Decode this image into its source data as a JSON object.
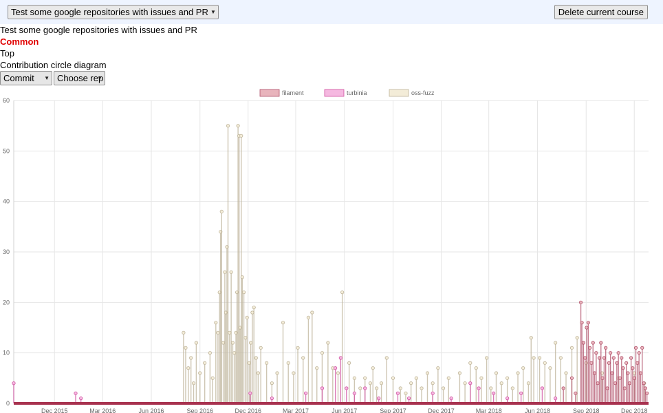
{
  "header": {
    "course_select": "Test some google repositories with issues and PR",
    "delete_button": "Delete current course"
  },
  "course_title": "Test some google repositories with issues and PR",
  "tabs": {
    "common": "Common",
    "top": "Top",
    "circle": "Contribution circle diagram"
  },
  "controls": {
    "metric": "Commit",
    "repo": "Choose rep"
  },
  "chart_data": {
    "type": "line",
    "ylim": [
      0,
      60
    ],
    "yticks": [
      0,
      10,
      20,
      30,
      40,
      50,
      60
    ],
    "xlim": [
      "2015-09-15",
      "2018-12-28"
    ],
    "xticks": [
      "Dec 2015",
      "Mar 2016",
      "Jun 2016",
      "Sep 2016",
      "Dec 2016",
      "Mar 2017",
      "Jun 2017",
      "Sep 2017",
      "Dec 2017",
      "Mar 2018",
      "Jun 2018",
      "Sep 2018",
      "Dec 2018"
    ],
    "xtick_dates": [
      "2015-12-01",
      "2016-03-01",
      "2016-06-01",
      "2016-09-01",
      "2016-12-01",
      "2017-03-01",
      "2017-06-01",
      "2017-09-01",
      "2017-12-01",
      "2018-03-01",
      "2018-06-01",
      "2018-09-01",
      "2018-12-01"
    ],
    "grid": true,
    "legend_position": "top",
    "series": [
      {
        "name": "filament",
        "color": "#b0506a",
        "fill": "#e8b4bc",
        "points": [
          [
            "2018-08-22",
            20
          ],
          [
            "2018-08-24",
            16
          ],
          [
            "2018-08-27",
            12
          ],
          [
            "2018-08-30",
            9
          ],
          [
            "2018-09-02",
            15
          ],
          [
            "2018-09-05",
            16
          ],
          [
            "2018-09-08",
            11
          ],
          [
            "2018-09-11",
            8
          ],
          [
            "2018-09-14",
            12
          ],
          [
            "2018-09-17",
            6
          ],
          [
            "2018-09-20",
            10
          ],
          [
            "2018-09-23",
            4
          ],
          [
            "2018-09-26",
            9
          ],
          [
            "2018-09-29",
            12
          ],
          [
            "2018-10-02",
            5
          ],
          [
            "2018-10-05",
            9
          ],
          [
            "2018-10-08",
            11
          ],
          [
            "2018-10-11",
            3
          ],
          [
            "2018-10-14",
            8
          ],
          [
            "2018-10-17",
            10
          ],
          [
            "2018-10-20",
            6
          ],
          [
            "2018-10-23",
            9
          ],
          [
            "2018-10-26",
            4
          ],
          [
            "2018-10-29",
            8
          ],
          [
            "2018-11-01",
            10
          ],
          [
            "2018-11-04",
            5
          ],
          [
            "2018-11-07",
            9
          ],
          [
            "2018-11-10",
            7
          ],
          [
            "2018-11-13",
            3
          ],
          [
            "2018-11-16",
            8
          ],
          [
            "2018-11-19",
            6
          ],
          [
            "2018-11-22",
            4
          ],
          [
            "2018-11-25",
            9
          ],
          [
            "2018-11-28",
            7
          ],
          [
            "2018-12-01",
            5
          ],
          [
            "2018-12-04",
            11
          ],
          [
            "2018-12-07",
            8
          ],
          [
            "2018-12-10",
            10
          ],
          [
            "2018-12-13",
            6
          ],
          [
            "2018-12-16",
            11
          ],
          [
            "2018-12-19",
            4
          ],
          [
            "2018-12-22",
            3
          ],
          [
            "2018-12-25",
            2
          ],
          [
            "2018-07-20",
            3
          ],
          [
            "2018-08-05",
            5
          ],
          [
            "2018-08-12",
            2
          ]
        ]
      },
      {
        "name": "turbinia",
        "color": "#d050a0",
        "fill": "#f5b8e0",
        "points": [
          [
            "2015-09-15",
            4
          ],
          [
            "2016-01-10",
            2
          ],
          [
            "2016-01-20",
            1
          ],
          [
            "2016-12-05",
            2
          ],
          [
            "2017-01-15",
            1
          ],
          [
            "2017-03-20",
            2
          ],
          [
            "2017-04-20",
            3
          ],
          [
            "2017-05-15",
            7
          ],
          [
            "2017-05-25",
            9
          ],
          [
            "2017-06-05",
            3
          ],
          [
            "2017-06-20",
            2
          ],
          [
            "2017-07-10",
            3
          ],
          [
            "2017-08-05",
            1
          ],
          [
            "2017-09-10",
            2
          ],
          [
            "2017-10-01",
            1
          ],
          [
            "2017-11-15",
            2
          ],
          [
            "2017-12-20",
            1
          ],
          [
            "2018-01-25",
            4
          ],
          [
            "2018-02-10",
            3
          ],
          [
            "2018-03-10",
            2
          ],
          [
            "2018-04-05",
            1
          ],
          [
            "2018-05-01",
            2
          ],
          [
            "2018-06-10",
            3
          ],
          [
            "2018-07-05",
            1
          ]
        ]
      },
      {
        "name": "oss-fuzz",
        "color": "#bdb39a",
        "fill": "#f3ecd8",
        "points": [
          [
            "2016-08-01",
            14
          ],
          [
            "2016-08-05",
            11
          ],
          [
            "2016-08-10",
            7
          ],
          [
            "2016-08-15",
            9
          ],
          [
            "2016-08-20",
            4
          ],
          [
            "2016-08-25",
            12
          ],
          [
            "2016-09-01",
            6
          ],
          [
            "2016-09-10",
            8
          ],
          [
            "2016-09-20",
            10
          ],
          [
            "2016-09-25",
            5
          ],
          [
            "2016-10-01",
            16
          ],
          [
            "2016-10-05",
            14
          ],
          [
            "2016-10-08",
            22
          ],
          [
            "2016-10-10",
            34
          ],
          [
            "2016-10-12",
            38
          ],
          [
            "2016-10-15",
            12
          ],
          [
            "2016-10-18",
            26
          ],
          [
            "2016-10-20",
            18
          ],
          [
            "2016-10-22",
            31
          ],
          [
            "2016-10-24",
            55
          ],
          [
            "2016-10-27",
            14
          ],
          [
            "2016-10-30",
            26
          ],
          [
            "2016-11-02",
            12
          ],
          [
            "2016-11-05",
            10
          ],
          [
            "2016-11-08",
            14
          ],
          [
            "2016-11-10",
            22
          ],
          [
            "2016-11-12",
            55
          ],
          [
            "2016-11-14",
            53
          ],
          [
            "2016-11-16",
            15
          ],
          [
            "2016-11-18",
            53
          ],
          [
            "2016-11-20",
            25
          ],
          [
            "2016-11-23",
            22
          ],
          [
            "2016-11-26",
            13
          ],
          [
            "2016-11-29",
            17
          ],
          [
            "2016-12-03",
            8
          ],
          [
            "2016-12-06",
            12
          ],
          [
            "2016-12-09",
            18
          ],
          [
            "2016-12-12",
            19
          ],
          [
            "2016-12-16",
            9
          ],
          [
            "2016-12-20",
            6
          ],
          [
            "2016-12-25",
            11
          ],
          [
            "2017-01-05",
            8
          ],
          [
            "2017-01-15",
            4
          ],
          [
            "2017-01-25",
            6
          ],
          [
            "2017-02-05",
            16
          ],
          [
            "2017-02-15",
            8
          ],
          [
            "2017-02-25",
            6
          ],
          [
            "2017-03-05",
            11
          ],
          [
            "2017-03-15",
            9
          ],
          [
            "2017-03-25",
            17
          ],
          [
            "2017-04-01",
            18
          ],
          [
            "2017-04-10",
            7
          ],
          [
            "2017-04-20",
            10
          ],
          [
            "2017-05-01",
            12
          ],
          [
            "2017-05-10",
            7
          ],
          [
            "2017-05-20",
            6
          ],
          [
            "2017-05-28",
            22
          ],
          [
            "2017-06-10",
            8
          ],
          [
            "2017-06-20",
            5
          ],
          [
            "2017-07-01",
            3
          ],
          [
            "2017-07-10",
            5
          ],
          [
            "2017-07-20",
            4
          ],
          [
            "2017-07-25",
            7
          ],
          [
            "2017-08-01",
            3
          ],
          [
            "2017-08-10",
            4
          ],
          [
            "2017-08-20",
            9
          ],
          [
            "2017-09-01",
            5
          ],
          [
            "2017-09-15",
            3
          ],
          [
            "2017-09-25",
            2
          ],
          [
            "2017-10-05",
            4
          ],
          [
            "2017-10-15",
            5
          ],
          [
            "2017-10-25",
            3
          ],
          [
            "2017-11-05",
            6
          ],
          [
            "2017-11-15",
            4
          ],
          [
            "2017-11-25",
            7
          ],
          [
            "2017-12-05",
            3
          ],
          [
            "2017-12-15",
            5
          ],
          [
            "2018-01-05",
            6
          ],
          [
            "2018-01-15",
            4
          ],
          [
            "2018-01-25",
            8
          ],
          [
            "2018-02-05",
            7
          ],
          [
            "2018-02-15",
            5
          ],
          [
            "2018-02-25",
            9
          ],
          [
            "2018-03-05",
            3
          ],
          [
            "2018-03-15",
            6
          ],
          [
            "2018-03-25",
            4
          ],
          [
            "2018-04-05",
            5
          ],
          [
            "2018-04-15",
            3
          ],
          [
            "2018-04-25",
            6
          ],
          [
            "2018-05-05",
            7
          ],
          [
            "2018-05-15",
            4
          ],
          [
            "2018-05-20",
            13
          ],
          [
            "2018-05-25",
            9
          ],
          [
            "2018-06-05",
            9
          ],
          [
            "2018-06-15",
            8
          ],
          [
            "2018-06-25",
            7
          ],
          [
            "2018-07-05",
            12
          ],
          [
            "2018-07-15",
            9
          ],
          [
            "2018-07-25",
            6
          ],
          [
            "2018-08-05",
            11
          ],
          [
            "2018-08-15",
            13
          ],
          [
            "2018-09-01",
            8
          ],
          [
            "2018-10-01",
            6
          ],
          [
            "2018-11-01",
            5
          ],
          [
            "2018-12-01",
            6
          ],
          [
            "2018-12-20",
            4
          ]
        ]
      }
    ]
  }
}
